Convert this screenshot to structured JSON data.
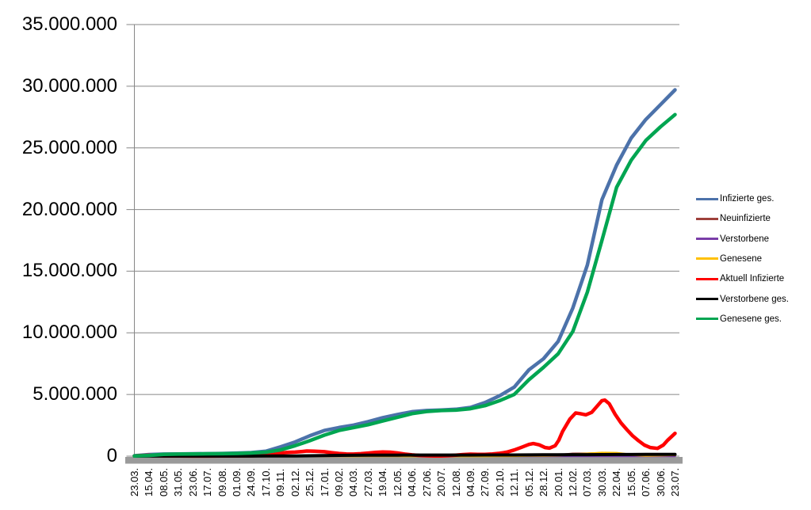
{
  "chart_data": {
    "type": "line",
    "title": "",
    "grid": true,
    "legend_position": "right",
    "background": "#ffffff",
    "gridline_color": "#878787",
    "axis_bar_color": "#9a9a9a",
    "y_axis": {
      "tick_values_millions": [
        0,
        5,
        10,
        15,
        20,
        25,
        30,
        35
      ],
      "tick_labels": [
        "0",
        "5.000.000",
        "10.000.000",
        "15.000.000",
        "20.000.000",
        "25.000.000",
        "30.000.000",
        "35.000.000"
      ],
      "max_millions": 35
    },
    "x_axis": {
      "tick_labels": [
        "23.03.",
        "15.04.",
        "08.05.",
        "31.05.",
        "23.06.",
        "17.07.",
        "09.08.",
        "01.09.",
        "24.09.",
        "17.10.",
        "09.11.",
        "02.12.",
        "25.12.",
        "17.01.",
        "09.02.",
        "04.03.",
        "27.03.",
        "19.04.",
        "12.05.",
        "04.06.",
        "27.06.",
        "20.07.",
        "12.08.",
        "04.09.",
        "27.09.",
        "20.10.",
        "12.11.",
        "05.12.",
        "28.12.",
        "20.01.",
        "12.02.",
        "07.03.",
        "30.03.",
        "22.04.",
        "15.05.",
        "07.06.",
        "30.06.",
        "23.07."
      ]
    },
    "series": [
      {
        "name": "Infizierte ges.",
        "color": "#4C72AA",
        "stroke_width": 4.5,
        "values_millions": [
          0.03,
          0.13,
          0.17,
          0.18,
          0.19,
          0.2,
          0.22,
          0.25,
          0.29,
          0.4,
          0.75,
          1.15,
          1.65,
          2.08,
          2.32,
          2.52,
          2.8,
          3.12,
          3.38,
          3.6,
          3.7,
          3.74,
          3.8,
          3.95,
          4.35,
          4.9,
          5.6,
          7.0,
          7.9,
          9.3,
          12.0,
          15.5,
          20.8,
          23.6,
          25.8,
          27.3,
          28.5,
          29.7
        ]
      },
      {
        "name": "Neuinfizierte",
        "color": "#9E403B",
        "stroke_width": 2.5,
        "values_millions": [
          0.004,
          0.003,
          0.001,
          0.0005,
          0.0005,
          0.0005,
          0.001,
          0.0015,
          0.002,
          0.007,
          0.02,
          0.019,
          0.026,
          0.015,
          0.008,
          0.009,
          0.016,
          0.021,
          0.012,
          0.004,
          0.001,
          0.0015,
          0.009,
          0.01,
          0.008,
          0.013,
          0.04,
          0.058,
          0.038,
          0.095,
          0.205,
          0.22,
          0.255,
          0.165,
          0.06,
          0.04,
          0.105,
          0.095
        ]
      },
      {
        "name": "Verstorbene",
        "color": "#7A3DA8",
        "stroke_width": 2.5,
        "values_millions": [
          0.0001,
          0.0002,
          0.0002,
          0.0001,
          0.0001,
          0.0001,
          0.0001,
          0.0001,
          0.0001,
          0.0002,
          0.0004,
          0.0006,
          0.0008,
          0.0009,
          0.0007,
          0.0004,
          0.0003,
          0.0003,
          0.0002,
          0.0001,
          0.0001,
          0.0001,
          0.0001,
          0.0001,
          0.0001,
          0.0002,
          0.0002,
          0.0003,
          0.0004,
          0.0002,
          0.0002,
          0.0003,
          0.0003,
          0.0003,
          0.0002,
          0.0001,
          0.0001,
          0.0001
        ]
      },
      {
        "name": "Genesene",
        "color": "#FFC000",
        "stroke_width": 3,
        "values_millions": [
          0.002,
          0.004,
          0.003,
          0.001,
          0.0005,
          0.0005,
          0.001,
          0.001,
          0.002,
          0.004,
          0.01,
          0.016,
          0.022,
          0.018,
          0.01,
          0.008,
          0.013,
          0.018,
          0.016,
          0.007,
          0.002,
          0.001,
          0.006,
          0.009,
          0.008,
          0.012,
          0.028,
          0.048,
          0.045,
          0.065,
          0.135,
          0.195,
          0.265,
          0.25,
          0.11,
          0.05,
          0.07,
          0.1
        ]
      },
      {
        "name": "Aktuell Infizierte",
        "color": "#FF0000",
        "stroke_width": 4.5,
        "x_ticks": [
          0,
          0.5,
          1,
          1.5,
          2,
          3,
          4,
          5,
          6,
          7,
          8,
          9,
          9.5,
          10,
          10.5,
          11,
          11.5,
          11.8,
          12.3,
          13,
          13.5,
          14,
          14.5,
          15,
          15.5,
          16,
          16.5,
          17,
          17.5,
          18,
          18.5,
          19,
          19.5,
          20,
          20.5,
          21,
          21.5,
          22,
          22.5,
          23,
          23.5,
          24,
          24.5,
          25,
          25.5,
          26,
          26.5,
          27,
          27.3,
          27.7,
          28.1,
          28.4,
          28.8,
          29.05,
          29.3,
          29.8,
          30.2,
          30.5,
          30.9,
          31.3,
          31.7,
          32,
          32.2,
          32.5,
          32.9,
          33.3,
          33.7,
          34.1,
          34.5,
          34.9,
          35.3,
          35.8,
          36.2,
          36.5,
          37
        ],
        "values_millions": [
          0.02,
          0.05,
          0.07,
          0.045,
          0.022,
          0.012,
          0.007,
          0.006,
          0.012,
          0.018,
          0.03,
          0.07,
          0.13,
          0.25,
          0.3,
          0.33,
          0.38,
          0.42,
          0.4,
          0.36,
          0.28,
          0.22,
          0.18,
          0.17,
          0.2,
          0.25,
          0.3,
          0.34,
          0.32,
          0.26,
          0.17,
          0.1,
          0.055,
          0.03,
          0.02,
          0.02,
          0.04,
          0.08,
          0.13,
          0.16,
          0.15,
          0.15,
          0.18,
          0.23,
          0.33,
          0.5,
          0.72,
          0.95,
          1.02,
          0.92,
          0.7,
          0.65,
          0.85,
          1.3,
          2.0,
          3.0,
          3.5,
          3.45,
          3.35,
          3.55,
          4.1,
          4.5,
          4.55,
          4.25,
          3.4,
          2.7,
          2.15,
          1.65,
          1.25,
          0.9,
          0.7,
          0.63,
          0.9,
          1.3,
          1.85
        ]
      },
      {
        "name": "Verstorbene ges.",
        "color": "#000000",
        "stroke_width": 4,
        "values_millions": [
          0.0002,
          0.004,
          0.007,
          0.0085,
          0.009,
          0.0091,
          0.0093,
          0.0094,
          0.0095,
          0.01,
          0.012,
          0.018,
          0.032,
          0.05,
          0.064,
          0.072,
          0.077,
          0.081,
          0.086,
          0.089,
          0.0905,
          0.0915,
          0.092,
          0.0925,
          0.0935,
          0.095,
          0.098,
          0.104,
          0.112,
          0.117,
          0.121,
          0.125,
          0.129,
          0.134,
          0.138,
          0.14,
          0.141,
          0.144
        ]
      },
      {
        "name": "Genesene ges.",
        "color": "#00A551",
        "stroke_width": 4.5,
        "values_millions": [
          0.01,
          0.06,
          0.15,
          0.17,
          0.18,
          0.19,
          0.2,
          0.22,
          0.26,
          0.32,
          0.5,
          0.85,
          1.25,
          1.7,
          2.08,
          2.32,
          2.55,
          2.85,
          3.15,
          3.45,
          3.62,
          3.7,
          3.73,
          3.85,
          4.1,
          4.5,
          5.0,
          6.2,
          7.2,
          8.3,
          10.1,
          13.3,
          17.5,
          21.8,
          24.0,
          25.6,
          26.7,
          27.7
        ]
      }
    ],
    "legend": {
      "labels": [
        "Infizierte ges.",
        "Neuinfizierte",
        "Verstorbene",
        "Genesene",
        "Aktuell Infizierte",
        "Verstorbene ges.",
        "Genesene ges."
      ]
    }
  }
}
